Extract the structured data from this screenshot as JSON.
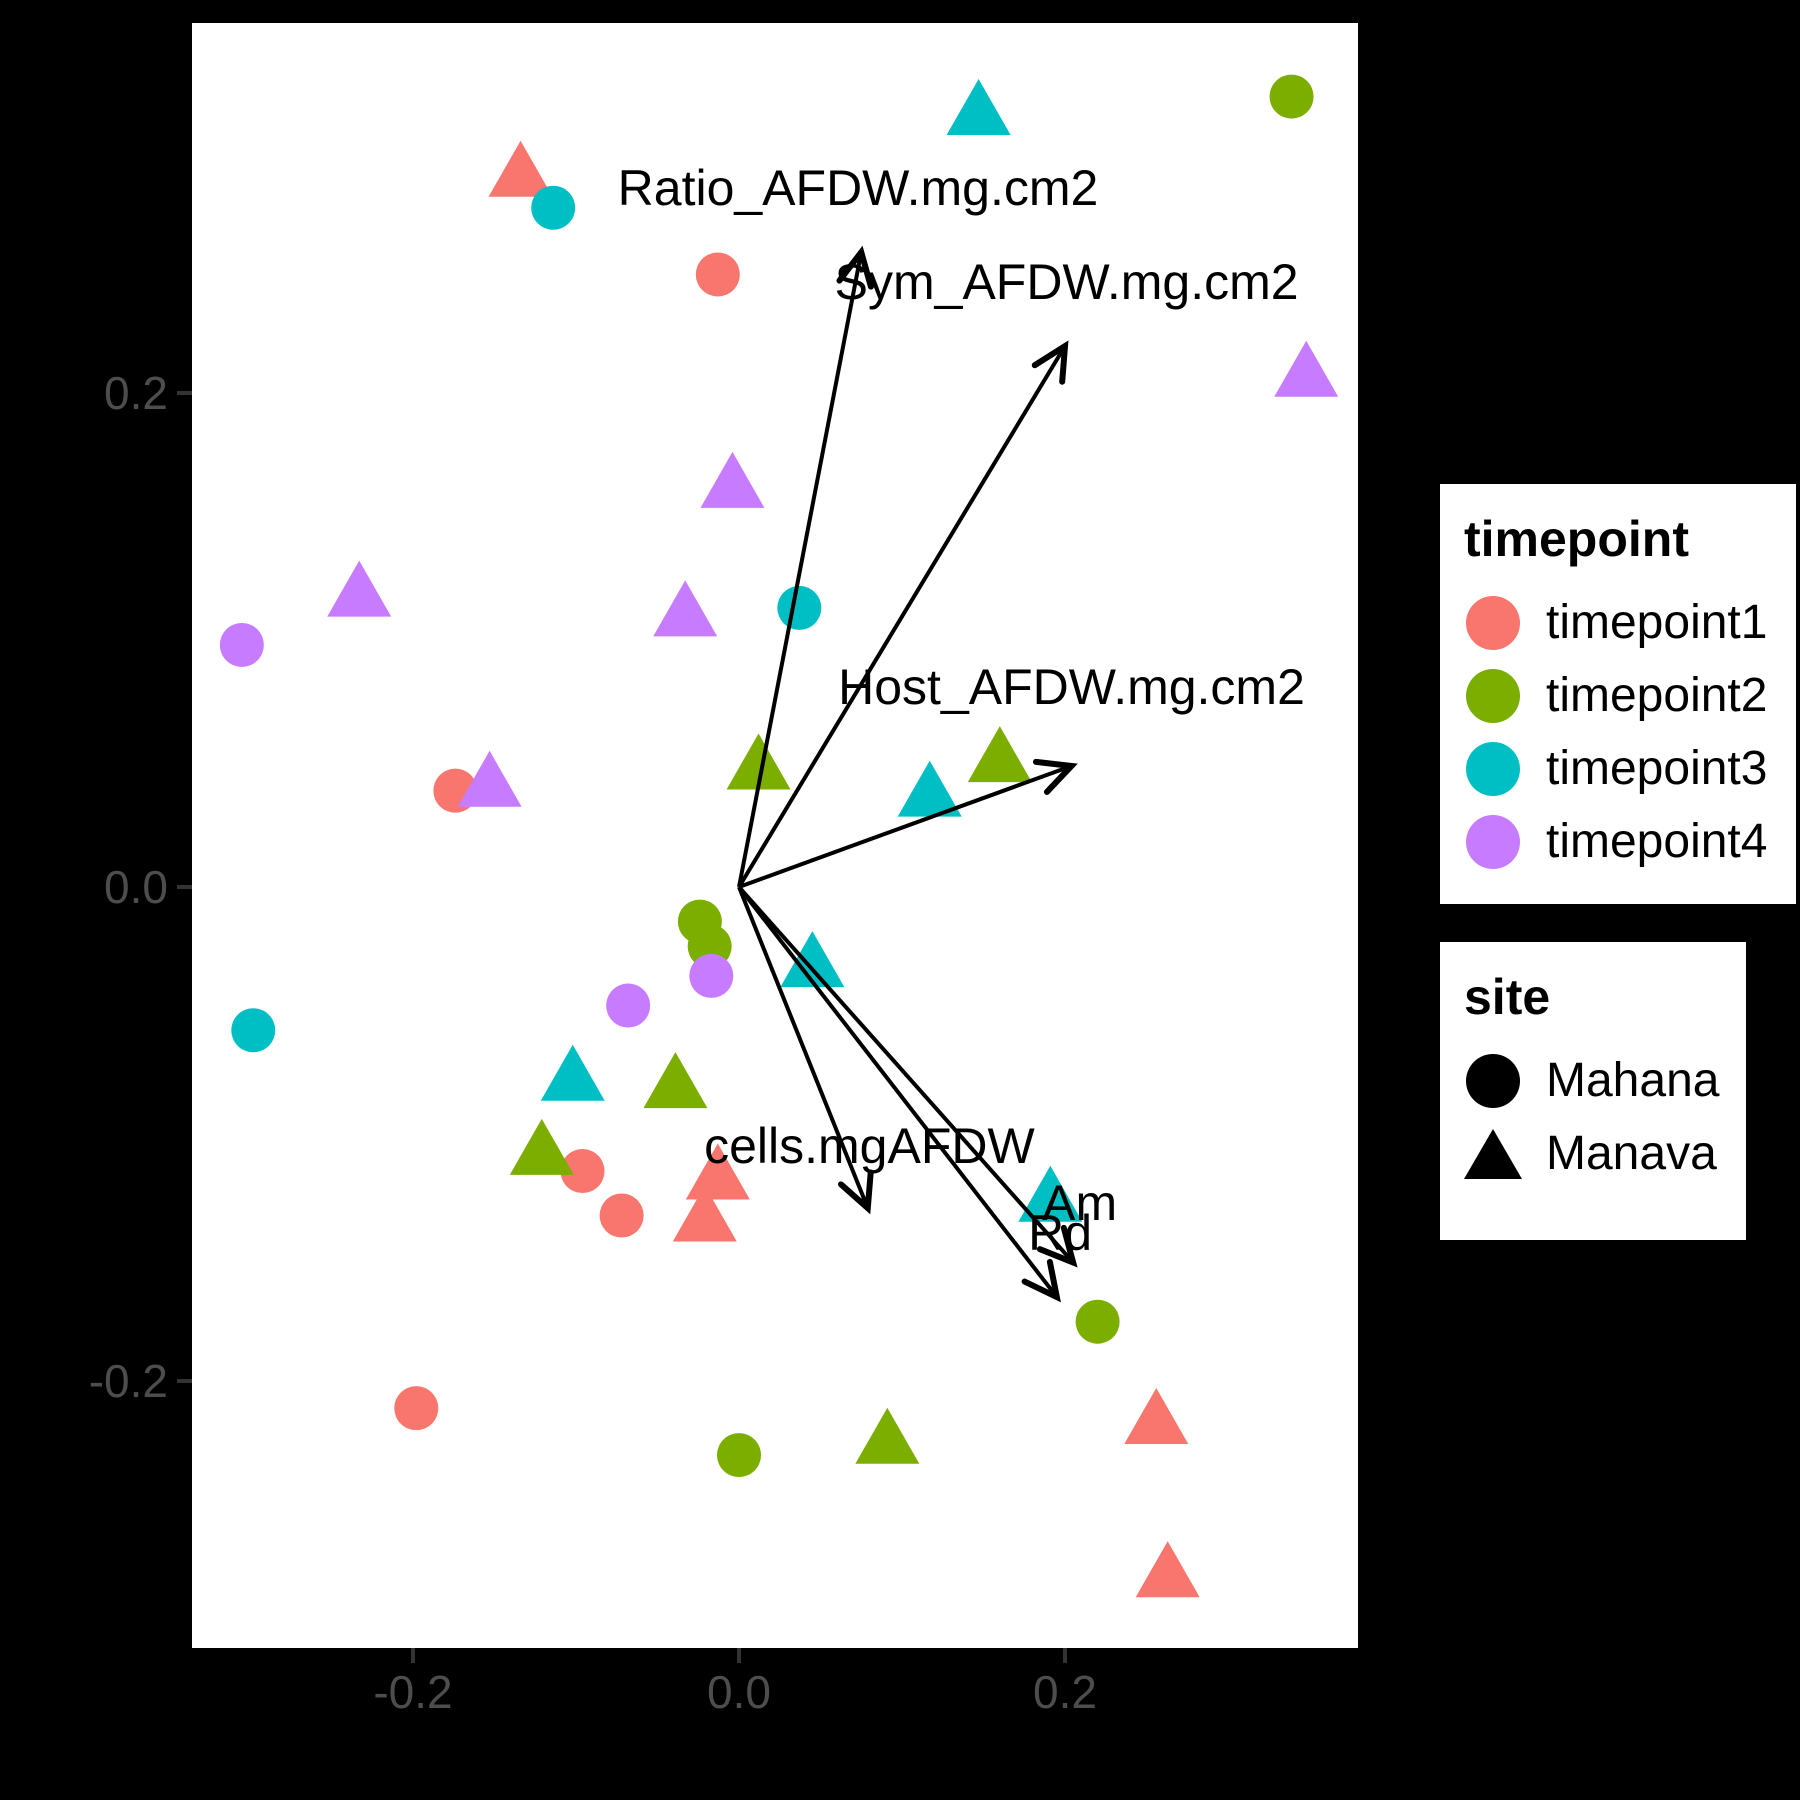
{
  "figure": {
    "background_color": "#000000",
    "panel_color": "#FFFFFF",
    "arrow_color": "#000000",
    "tick_color": "#333333",
    "axis_text_color": "#4d4d4d"
  },
  "legend_timepoint": {
    "title": "timepoint",
    "items": [
      {
        "label": "timepoint1",
        "color": "#F8766D",
        "shape": "circle"
      },
      {
        "label": "timepoint2",
        "color": "#7CAE00",
        "shape": "circle"
      },
      {
        "label": "timepoint3",
        "color": "#00BFC4",
        "shape": "circle"
      },
      {
        "label": "timepoint4",
        "color": "#C77CFF",
        "shape": "circle"
      }
    ]
  },
  "legend_site": {
    "title": "site",
    "items": [
      {
        "label": "Mahana",
        "shape": "circle",
        "color": "#000000"
      },
      {
        "label": "Manava",
        "shape": "triangle",
        "color": "#000000"
      }
    ]
  },
  "chart_data": {
    "type": "scatter",
    "title": "",
    "xlabel": "",
    "ylabel": "",
    "xlim": [
      -0.336,
      0.38
    ],
    "ylim": [
      -0.308,
      0.35
    ],
    "grid": false,
    "legend_position": "right",
    "x_ticks": [
      {
        "value": -0.2,
        "label": "-0.2"
      },
      {
        "value": 0.0,
        "label": "0.0"
      },
      {
        "value": 0.2,
        "label": "0.2"
      }
    ],
    "y_ticks": [
      {
        "value": 0.2,
        "label": "0.2"
      },
      {
        "value": 0.0,
        "label": "0.0"
      },
      {
        "value": -0.2,
        "label": "-0.2"
      }
    ],
    "shape_map": {
      "Mahana": "circle",
      "Manava": "triangle"
    },
    "series": [
      {
        "name": "timepoint1",
        "color": "#F8766D",
        "points": [
          {
            "x": -0.013,
            "y": 0.248,
            "site": "Mahana"
          },
          {
            "x": -0.174,
            "y": 0.039,
            "site": "Mahana"
          },
          {
            "x": -0.096,
            "y": -0.115,
            "site": "Mahana"
          },
          {
            "x": -0.072,
            "y": -0.133,
            "site": "Mahana"
          },
          {
            "x": -0.198,
            "y": -0.211,
            "site": "Mahana"
          },
          {
            "x": -0.134,
            "y": 0.29,
            "site": "Manava"
          },
          {
            "x": -0.013,
            "y": -0.116,
            "site": "Manava"
          },
          {
            "x": -0.021,
            "y": -0.133,
            "site": "Manava"
          },
          {
            "x": 0.256,
            "y": -0.215,
            "site": "Manava"
          },
          {
            "x": 0.263,
            "y": -0.277,
            "site": "Manava"
          }
        ]
      },
      {
        "name": "timepoint2",
        "color": "#7CAE00",
        "points": [
          {
            "x": 0.339,
            "y": 0.32,
            "site": "Mahana"
          },
          {
            "x": -0.024,
            "y": -0.014,
            "site": "Mahana"
          },
          {
            "x": -0.018,
            "y": -0.024,
            "site": "Mahana"
          },
          {
            "x": 0.22,
            "y": -0.176,
            "site": "Mahana"
          },
          {
            "x": 0.0,
            "y": -0.23,
            "site": "Mahana"
          },
          {
            "x": 0.012,
            "y": 0.05,
            "site": "Manava"
          },
          {
            "x": 0.16,
            "y": 0.053,
            "site": "Manava"
          },
          {
            "x": -0.039,
            "y": -0.079,
            "site": "Manava"
          },
          {
            "x": -0.121,
            "y": -0.106,
            "site": "Manava"
          },
          {
            "x": 0.091,
            "y": -0.223,
            "site": "Manava"
          }
        ]
      },
      {
        "name": "timepoint3",
        "color": "#00BFC4",
        "points": [
          {
            "x": -0.114,
            "y": 0.275,
            "site": "Mahana"
          },
          {
            "x": 0.037,
            "y": 0.113,
            "site": "Mahana"
          },
          {
            "x": -0.298,
            "y": -0.058,
            "site": "Mahana"
          },
          {
            "x": 0.147,
            "y": 0.315,
            "site": "Manava"
          },
          {
            "x": 0.117,
            "y": 0.039,
            "site": "Manava"
          },
          {
            "x": 0.045,
            "y": -0.03,
            "site": "Manava"
          },
          {
            "x": -0.102,
            "y": -0.076,
            "site": "Manava"
          },
          {
            "x": 0.191,
            "y": -0.125,
            "site": "Manava"
          }
        ]
      },
      {
        "name": "timepoint4",
        "color": "#C77CFF",
        "points": [
          {
            "x": -0.305,
            "y": 0.098,
            "site": "Mahana"
          },
          {
            "x": -0.017,
            "y": -0.036,
            "site": "Mahana"
          },
          {
            "x": -0.068,
            "y": -0.048,
            "site": "Mahana"
          },
          {
            "x": 0.348,
            "y": 0.209,
            "site": "Manava"
          },
          {
            "x": -0.004,
            "y": 0.164,
            "site": "Manava"
          },
          {
            "x": -0.033,
            "y": 0.112,
            "site": "Manava"
          },
          {
            "x": -0.233,
            "y": 0.12,
            "site": "Manava"
          },
          {
            "x": -0.153,
            "y": 0.043,
            "site": "Manava"
          }
        ]
      }
    ],
    "vectors": [
      {
        "name": "ratio-afdw",
        "label": "Ratio_AFDW.mg.cm2",
        "origin": [
          0,
          0
        ],
        "tip": [
          0.075,
          0.257
        ],
        "label_pos": [
          0.073,
          0.283
        ]
      },
      {
        "name": "sym-afdw",
        "label": "Sym_AFDW.mg.cm2",
        "origin": [
          0,
          0
        ],
        "tip": [
          0.2,
          0.219
        ],
        "label_pos": [
          0.201,
          0.245
        ]
      },
      {
        "name": "host-afdw",
        "label": "Host_AFDW.mg.cm2",
        "origin": [
          0,
          0
        ],
        "tip": [
          0.204,
          0.049
        ],
        "label_pos": [
          0.204,
          0.081
        ]
      },
      {
        "name": "cells-mgafdw",
        "label": "cells.mgAFDW",
        "origin": [
          0,
          0
        ],
        "tip": [
          0.079,
          -0.13
        ],
        "label_pos": [
          0.08,
          -0.105
        ]
      },
      {
        "name": "am",
        "label": "Am",
        "origin": [
          0,
          0
        ],
        "tip": [
          0.205,
          -0.152
        ],
        "label_pos": [
          0.209,
          -0.128
        ]
      },
      {
        "name": "rd",
        "label": "Rd",
        "origin": [
          0,
          0
        ],
        "tip": [
          0.195,
          -0.166
        ],
        "label_pos": [
          0.197,
          -0.14
        ]
      }
    ]
  }
}
